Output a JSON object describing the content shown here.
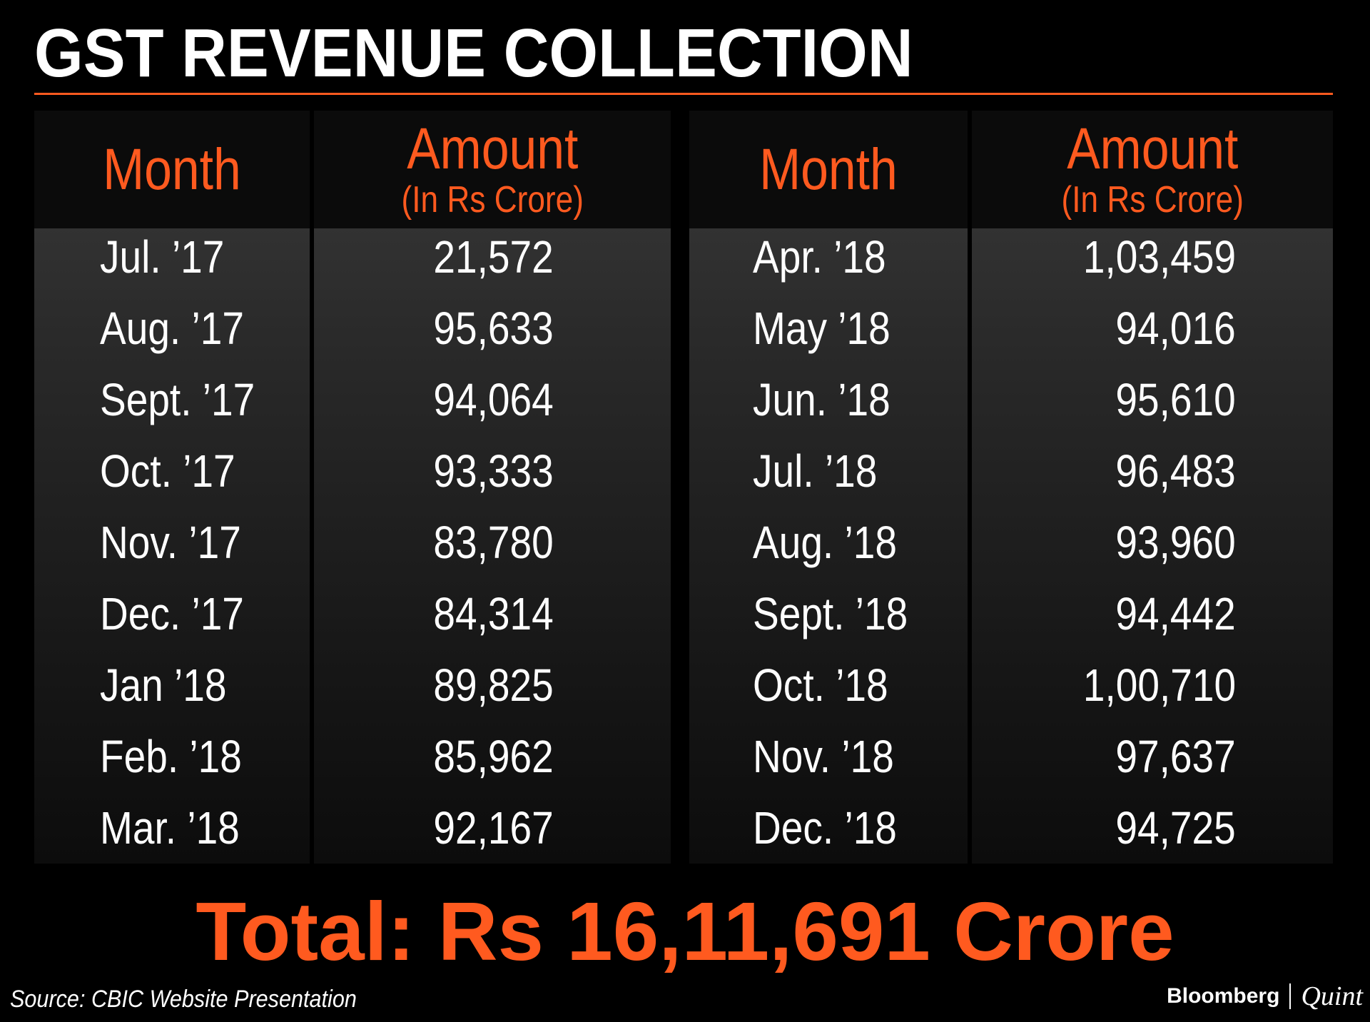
{
  "title": "GST REVENUE COLLECTION",
  "headers": {
    "month": "Month",
    "amount": "Amount",
    "amount_unit": "(In Rs Crore)"
  },
  "chart_data": {
    "type": "table",
    "title": "GST REVENUE COLLECTION",
    "columns": [
      "Month",
      "Amount (In Rs Crore)"
    ],
    "rows": [
      {
        "month": "Jul. ’17",
        "amount": "21,572"
      },
      {
        "month": "Aug. ’17",
        "amount": "95,633"
      },
      {
        "month": "Sept. ’17",
        "amount": "94,064"
      },
      {
        "month": "Oct. ’17",
        "amount": "93,333"
      },
      {
        "month": "Nov. ’17",
        "amount": "83,780"
      },
      {
        "month": "Dec. ’17",
        "amount": "84,314"
      },
      {
        "month": "Jan ’18",
        "amount": "89,825"
      },
      {
        "month": "Feb. ’18",
        "amount": "85,962"
      },
      {
        "month": "Mar. ’18",
        "amount": "92,167"
      },
      {
        "month": "Apr. ’18",
        "amount": "1,03,459"
      },
      {
        "month": "May ’18",
        "amount": "94,016"
      },
      {
        "month": "Jun. ’18",
        "amount": "95,610"
      },
      {
        "month": "Jul. ’18",
        "amount": "96,483"
      },
      {
        "month": "Aug. ’18",
        "amount": "93,960"
      },
      {
        "month": "Sept. ’18",
        "amount": "94,442"
      },
      {
        "month": "Oct. ’18",
        "amount": "1,00,710"
      },
      {
        "month": "Nov. ’18",
        "amount": "97,637"
      },
      {
        "month": "Dec. ’18",
        "amount": "94,725"
      }
    ],
    "total": "Total: Rs 16,11,691 Crore"
  },
  "source": "Source: CBIC Website Presentation",
  "logo": {
    "brand": "Bloomberg",
    "partner": "Quint"
  },
  "colors": {
    "accent": "#ff5a1f",
    "background": "#000000",
    "text": "#ffffff"
  }
}
